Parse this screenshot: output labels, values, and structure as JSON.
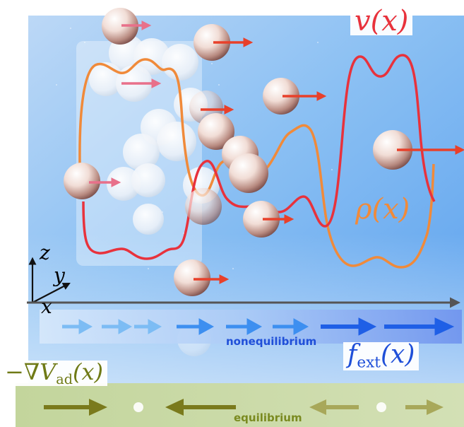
{
  "labels": {
    "v_label": "v(x)",
    "rho_label": "ρ(x)",
    "fext_label": "f_ext(x)",
    "grad_label": "−∇V_ad(x)",
    "axis_z": "z",
    "axis_y": "y",
    "axis_x": "x",
    "nonequilibrium": "nonequilibrium",
    "equilibrium": "equilibrium"
  },
  "colors": {
    "velocity_curve": "#e8323c",
    "density_curve": "#f08a3a",
    "nonequilibrium_arrow": "#1f5fe6",
    "nonequilibrium_text": "#1f4fd8",
    "equilibrium_arrow": "#7a7a1c",
    "equilibrium_text": "#7a8a20",
    "particle_arrow": "#e8402a"
  }
}
